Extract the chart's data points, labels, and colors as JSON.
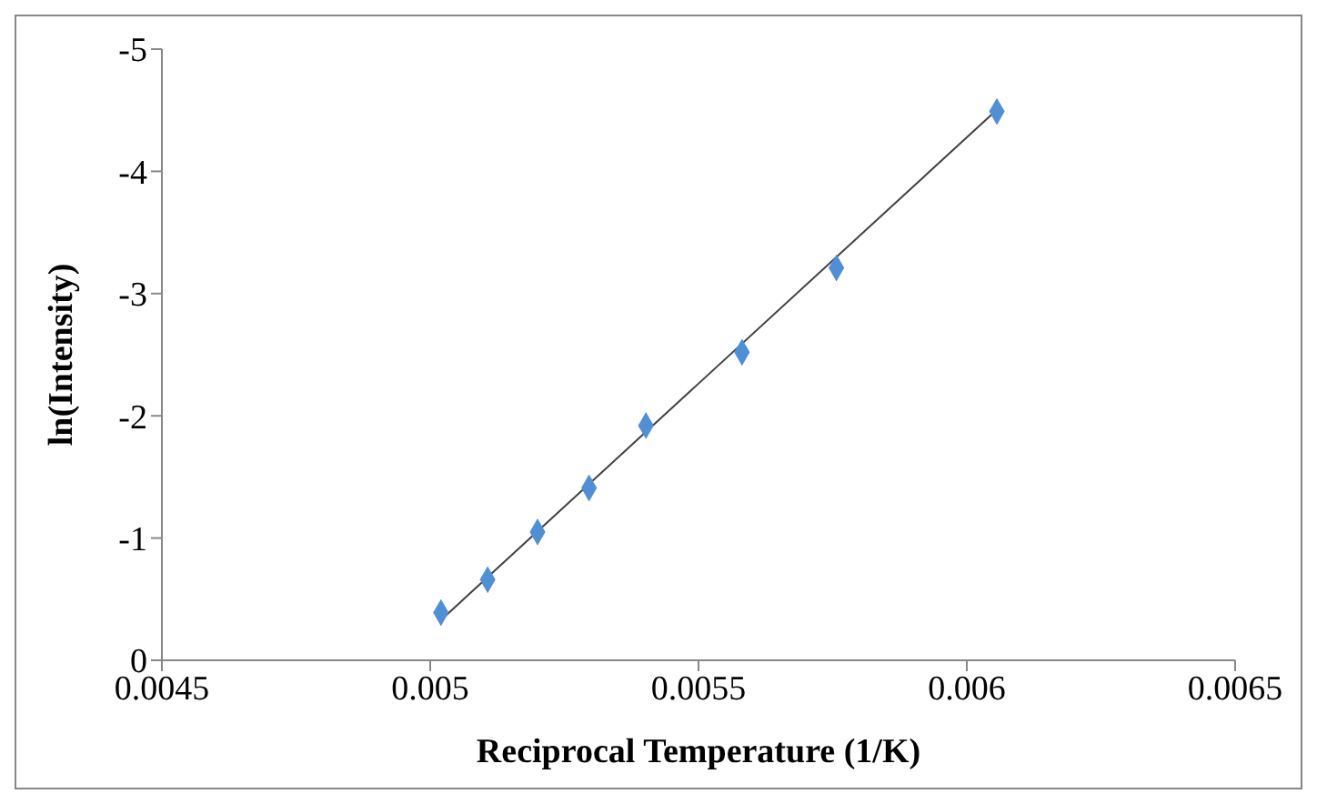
{
  "chart_data": {
    "type": "scatter",
    "xlabel": "Reciprocal Temperature  (1/K)",
    "ylabel": "ln(Intensity)",
    "xlim": [
      0.0045,
      0.0065
    ],
    "xticks": [
      0.0045,
      0.005,
      0.0055,
      0.006,
      0.0065
    ],
    "ylim": [
      0,
      -5
    ],
    "yticks": [
      0,
      -1,
      -2,
      -3,
      -4,
      -5
    ],
    "grid": false,
    "legend": false,
    "marker": "diamond",
    "series": [
      {
        "type": "scatter",
        "color": "#4f8fd6",
        "x": [
          0.00502,
          0.005107,
          0.0052,
          0.005296,
          0.005402,
          0.005581,
          0.005757,
          0.006056
        ],
        "values": [
          -0.39,
          -0.66,
          -1.05,
          -1.41,
          -1.92,
          -2.52,
          -3.21,
          -4.49
        ]
      },
      {
        "type": "line",
        "color": "#404040",
        "marker": "none",
        "x": [
          0.00502,
          0.00606
        ],
        "values": [
          -0.33,
          -4.52
        ]
      }
    ]
  }
}
